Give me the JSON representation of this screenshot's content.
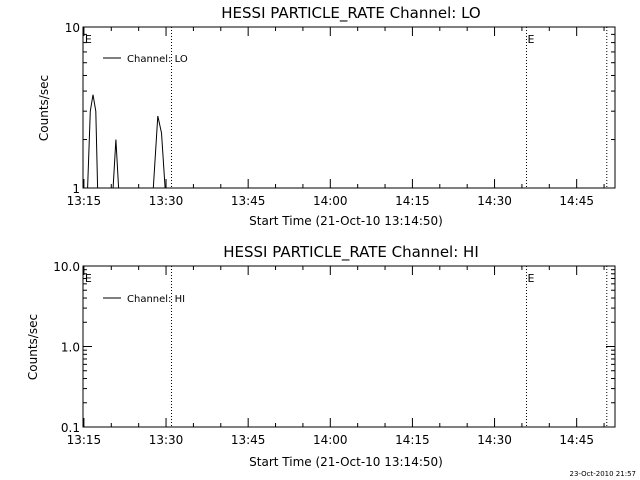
{
  "footer": {
    "timestamp": "23-Oct-2010 21:57"
  },
  "chart_data": [
    {
      "type": "line",
      "title": "HESSI PARTICLE_RATE Channel: LO",
      "xlabel": "Start Time (21-Oct-10 13:14:50)",
      "ylabel": "Counts/sec",
      "yscale": "log",
      "xlim": [
        "13:14:50",
        "14:52:00"
      ],
      "ylim": [
        1,
        10
      ],
      "x_ticks": [
        "13:15",
        "13:30",
        "13:45",
        "14:00",
        "14:15",
        "14:30",
        "14:45"
      ],
      "y_ticks": [
        "1",
        "10"
      ],
      "legend": {
        "placement": "top-left",
        "entries": [
          "Channel: LO"
        ]
      },
      "series": [
        {
          "name": "Channel: LO",
          "x": [
            "13:14:50",
            "13:15:40",
            "13:16:10",
            "13:16:40",
            "13:17:10",
            "13:17:30",
            "13:18:00",
            "13:20:20",
            "13:20:50",
            "13:21:20",
            "13:21:40",
            "13:27:40",
            "13:28:30",
            "13:29:10",
            "13:29:50",
            "13:30:20",
            "14:52:00"
          ],
          "y": [
            1,
            1,
            3.0,
            3.8,
            3.0,
            1,
            1,
            1,
            2.0,
            1,
            1,
            1,
            2.8,
            2.2,
            1,
            1,
            1
          ]
        }
      ],
      "vlines": [
        {
          "x": "13:31:00",
          "label": ""
        },
        {
          "x": "14:35:50",
          "label": "E"
        },
        {
          "x": "14:50:30",
          "label": ""
        },
        {
          "x": "13:15:00",
          "label": "E"
        }
      ]
    },
    {
      "type": "line",
      "title": "HESSI PARTICLE_RATE Channel: HI",
      "xlabel": "Start Time (21-Oct-10 13:14:50)",
      "ylabel": "Counts/sec",
      "yscale": "log",
      "xlim": [
        "13:14:50",
        "14:52:00"
      ],
      "ylim": [
        0.1,
        10
      ],
      "x_ticks": [
        "13:15",
        "13:30",
        "13:45",
        "14:00",
        "14:15",
        "14:30",
        "14:45"
      ],
      "y_ticks": [
        "0.1",
        "1.0",
        "10.0"
      ],
      "legend": {
        "placement": "top-left",
        "entries": [
          "Channel: HI"
        ]
      },
      "series": [
        {
          "name": "Channel: HI",
          "x": [],
          "y": []
        }
      ],
      "vlines": [
        {
          "x": "13:31:00",
          "label": ""
        },
        {
          "x": "14:35:50",
          "label": "E"
        },
        {
          "x": "14:50:30",
          "label": ""
        },
        {
          "x": "13:15:00",
          "label": "E"
        }
      ]
    }
  ]
}
